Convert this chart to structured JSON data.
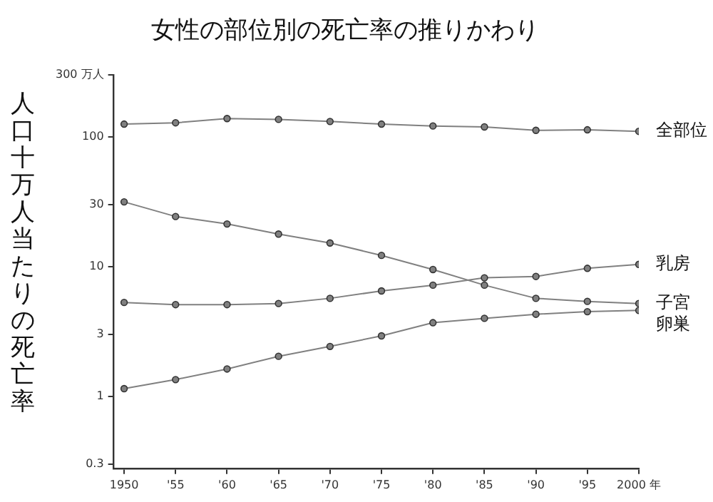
{
  "chart_data": {
    "type": "line",
    "title": "女性の部位別の死亡率の推りかわり",
    "ylabel": "人口十万人当たりの死亡率",
    "x": [
      1950,
      1955,
      1960,
      1965,
      1970,
      1975,
      1980,
      1985,
      1990,
      1995,
      2000
    ],
    "xlim": [
      1949,
      2000
    ],
    "xticks": [
      1950,
      {
        "value": 1955,
        "label": "'55"
      },
      {
        "value": 1960,
        "label": "'60"
      },
      {
        "value": 1965,
        "label": "'65"
      },
      {
        "value": 1970,
        "label": "'70"
      },
      {
        "value": 1975,
        "label": "'75"
      },
      {
        "value": 1980,
        "label": "'80"
      },
      {
        "value": 1985,
        "label": "'85"
      },
      {
        "value": 1990,
        "label": "'90"
      },
      {
        "value": 1995,
        "label": "'95"
      },
      {
        "value": 2000,
        "label": "2000 年"
      }
    ],
    "ylim": [
      0.28,
      300
    ],
    "yticks": [
      0.3,
      1,
      3,
      10,
      30,
      100,
      {
        "value": 300,
        "label": "300 万人"
      }
    ],
    "log": "y",
    "grid": false,
    "legend": false,
    "marker": "circle",
    "line_style": "solid",
    "series": [
      {
        "name": "全部位",
        "color": "#808080",
        "values": [
          125,
          128,
          138,
          136,
          131,
          125,
          121,
          119,
          112,
          113,
          110
        ]
      },
      {
        "name": "乳房",
        "color": "#808080",
        "values": [
          5.3,
          5.1,
          5.1,
          5.2,
          5.7,
          6.5,
          7.2,
          8.2,
          8.4,
          9.7,
          10.4
        ]
      },
      {
        "name": "子宮",
        "color": "#808080",
        "values": [
          31.5,
          24.3,
          21.3,
          17.8,
          15.2,
          12.2,
          9.5,
          7.2,
          5.7,
          5.4,
          5.2
        ]
      },
      {
        "name": "卵巣",
        "color": "#808080",
        "values": [
          1.15,
          1.35,
          1.63,
          2.04,
          2.43,
          2.93,
          3.7,
          4.0,
          4.3,
          4.5,
          4.6
        ]
      }
    ]
  }
}
